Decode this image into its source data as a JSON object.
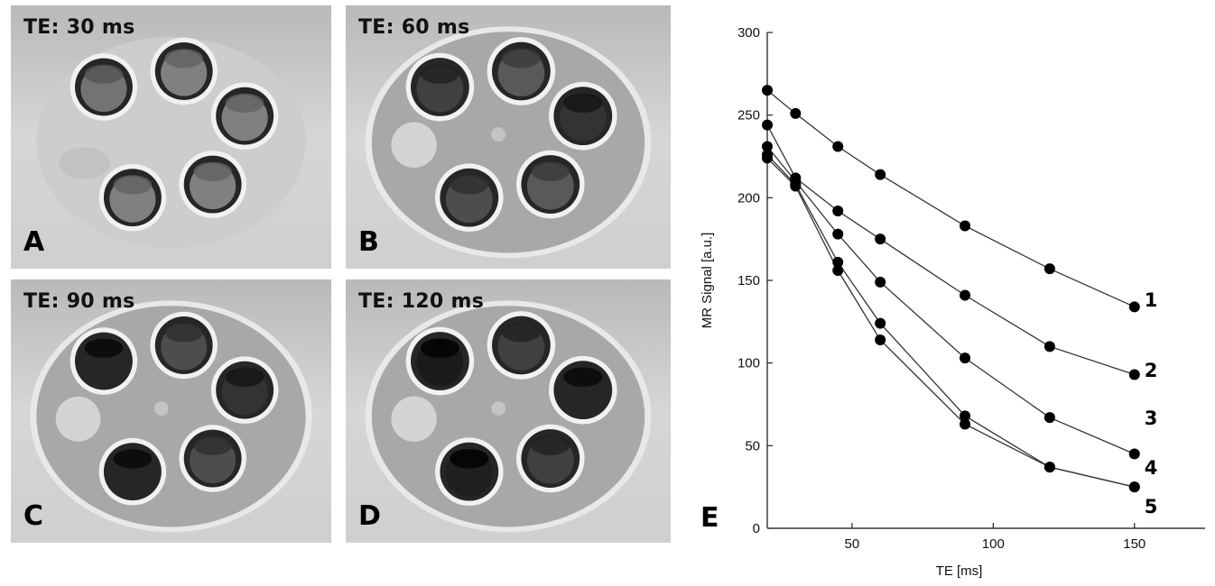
{
  "panels": [
    {
      "id": "A",
      "te_label": "TE: 30 ms",
      "letter": "A",
      "phantom_visible": false,
      "vial_tone": [
        0.45,
        0.5,
        0.5,
        0.5,
        0.5
      ]
    },
    {
      "id": "B",
      "te_label": "TE: 60 ms",
      "letter": "B",
      "phantom_visible": true,
      "vial_tone": [
        0.25,
        0.35,
        0.2,
        0.35,
        0.3
      ]
    },
    {
      "id": "C",
      "te_label": "TE: 90 ms",
      "letter": "C",
      "phantom_visible": true,
      "vial_tone": [
        0.15,
        0.3,
        0.2,
        0.3,
        0.15
      ]
    },
    {
      "id": "D",
      "te_label": "TE: 120 ms",
      "letter": "D",
      "phantom_visible": true,
      "vial_tone": [
        0.1,
        0.25,
        0.15,
        0.25,
        0.12
      ]
    }
  ],
  "chart_data": {
    "type": "line",
    "panel_letter": "E",
    "xlabel": "TE [ms]",
    "ylabel": "MR Signal [a.u.]",
    "xlim": [
      20,
      175
    ],
    "ylim": [
      0,
      300
    ],
    "xticks": [
      50,
      100,
      150
    ],
    "yticks": [
      0,
      50,
      100,
      150,
      200,
      250,
      300
    ],
    "x": [
      20,
      30,
      45,
      60,
      90,
      120,
      150
    ],
    "series": [
      {
        "name": "1",
        "values": [
          265,
          251,
          231,
          214,
          183,
          157,
          134
        ]
      },
      {
        "name": "2",
        "values": [
          244,
          212,
          192,
          175,
          141,
          110,
          93
        ]
      },
      {
        "name": "3",
        "values": [
          231,
          210,
          178,
          149,
          103,
          67,
          45
        ]
      },
      {
        "name": "4",
        "values": [
          226,
          208,
          161,
          124,
          68,
          37,
          25
        ]
      },
      {
        "name": "5",
        "values": [
          224,
          207,
          156,
          114,
          63,
          37,
          25
        ]
      }
    ],
    "curve_labels": [
      "1",
      "2",
      "3",
      "4",
      "5"
    ]
  }
}
